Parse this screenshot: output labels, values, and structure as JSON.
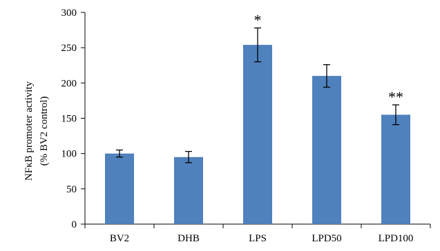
{
  "chart_data": {
    "type": "bar",
    "categories": [
      "BV2",
      "DHB",
      "LPS",
      "LPD50",
      "LPD100"
    ],
    "values": [
      100,
      95,
      254,
      210,
      155
    ],
    "error": [
      5,
      8,
      24,
      16,
      14
    ],
    "annotations": [
      "",
      "",
      "*",
      "",
      "**"
    ],
    "title": "",
    "xlabel": "",
    "ylabel_lines": [
      "NFκB promoter activity",
      "(% BV2 control)"
    ],
    "ylim": [
      0,
      300
    ],
    "yticks": [
      0,
      50,
      100,
      150,
      200,
      250,
      300
    ],
    "bar_color": "#4f81bd",
    "grid": false,
    "legend": "none"
  }
}
